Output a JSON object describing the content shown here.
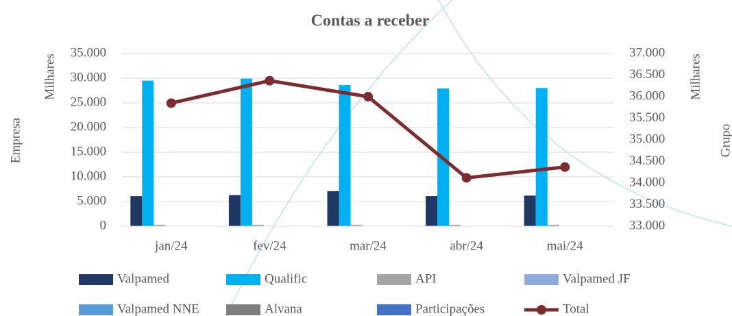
{
  "chart_data": {
    "type": "bar",
    "title": "Contas a receber",
    "ylabel": "Empresa",
    "y_unit_label": "Milhares",
    "y2label": "Grupo",
    "y2_unit_label": "Milhares",
    "categories": [
      "jan/24",
      "fev/24",
      "mar/24",
      "abr/24",
      "mai/24"
    ],
    "ylim": [
      0,
      35000
    ],
    "yticks": [
      0,
      {
        "value": 5000,
        "label": "5.000"
      },
      {
        "value": 10000,
        "label": "10.000"
      },
      {
        "value": 15000,
        "label": "15.000"
      },
      {
        "value": 20000,
        "label": "20.000"
      },
      {
        "value": 25000,
        "label": "25.000"
      },
      {
        "value": 30000,
        "label": "30.000"
      },
      {
        "value": 35000,
        "label": "35.000"
      }
    ],
    "y2lim": [
      33000,
      37000
    ],
    "y2ticks": [
      {
        "value": 33000,
        "label": "33.000"
      },
      {
        "value": 33500,
        "label": "33.500"
      },
      {
        "value": 34000,
        "label": "34.000"
      },
      {
        "value": 34500,
        "label": "34.500"
      },
      {
        "value": 35000,
        "label": "35.000"
      },
      {
        "value": 35500,
        "label": "35.500"
      },
      {
        "value": 36000,
        "label": "36.000"
      },
      {
        "value": 36500,
        "label": "36.500"
      },
      {
        "value": 37000,
        "label": "37.000"
      }
    ],
    "grid": true,
    "legend": "bottom",
    "series": [
      {
        "name": "Valpamed",
        "color": "#1f3864",
        "values": [
          6100,
          6300,
          7100,
          6100,
          6200
        ]
      },
      {
        "name": "Qualific",
        "color": "#00b0f0",
        "values": [
          29500,
          29900,
          28600,
          27900,
          28000
        ]
      },
      {
        "name": "API",
        "color": "#a5a5a5",
        "values": [
          300,
          300,
          300,
          300,
          300
        ]
      },
      {
        "name": "Valpamed JF",
        "color": "#8faadc",
        "values": [
          0,
          0,
          0,
          0,
          0
        ]
      },
      {
        "name": "Valpamed NNE",
        "color": "#5b9bd5",
        "values": [
          0,
          0,
          0,
          0,
          0
        ]
      },
      {
        "name": "Alvana",
        "color": "#7f7f7f",
        "values": [
          0,
          0,
          0,
          0,
          0
        ]
      },
      {
        "name": "Participações",
        "color": "#4472c4",
        "values": [
          0,
          0,
          0,
          0,
          0
        ]
      },
      {
        "name": "Total",
        "color": "#7b2c2f",
        "type": "line",
        "axis": "y2",
        "values": [
          35850,
          36370,
          36000,
          34120,
          34370
        ]
      }
    ]
  }
}
